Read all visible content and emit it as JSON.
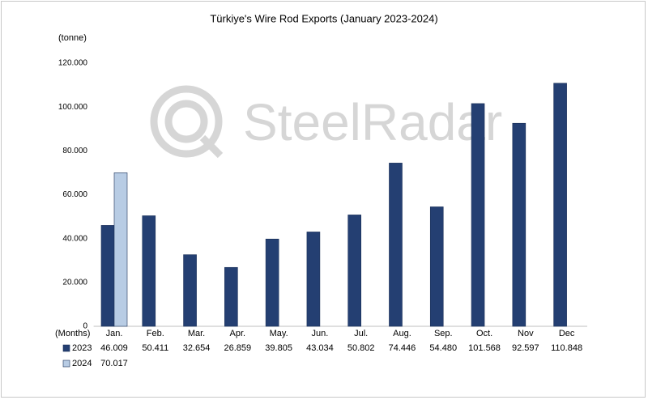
{
  "chart_data": {
    "type": "bar",
    "title": "Türkiye's Wire Rod Exports (January 2023-2024)",
    "y_axis_label": "(tonne)",
    "x_axis_label": "(Months)",
    "watermark": "SteelRadar",
    "categories": [
      "Jan.",
      "Feb.",
      "Mar.",
      "Apr.",
      "May.",
      "Jun.",
      "Jul.",
      "Aug.",
      "Sep.",
      "Oct.",
      "Nov",
      "Dec"
    ],
    "series": [
      {
        "name": "2023",
        "color": "#243f72",
        "values": [
          46009,
          50411,
          32654,
          26859,
          39805,
          43034,
          50802,
          74446,
          54480,
          101568,
          92597,
          110848
        ],
        "value_labels": [
          "46.009",
          "50.411",
          "32.654",
          "26.859",
          "39.805",
          "43.034",
          "50.802",
          "74.446",
          "54.480",
          "101.568",
          "92.597",
          "110.848"
        ]
      },
      {
        "name": "2024",
        "color": "#b8cce4",
        "values": [
          70017,
          null,
          null,
          null,
          null,
          null,
          null,
          null,
          null,
          null,
          null,
          null
        ],
        "value_labels": [
          "70.017",
          null,
          null,
          null,
          null,
          null,
          null,
          null,
          null,
          null,
          null,
          null
        ]
      }
    ],
    "ylim": [
      0,
      120000
    ],
    "yticks": [
      0,
      {
        "value": 20000,
        "label": "20.000"
      },
      {
        "value": 40000,
        "label": "40.000"
      },
      {
        "value": 60000,
        "label": "60.000"
      },
      {
        "value": 80000,
        "label": "80.000"
      },
      {
        "value": 100000,
        "label": "100.000"
      },
      {
        "value": 120000,
        "label": "120.000"
      }
    ],
    "grid": false
  }
}
